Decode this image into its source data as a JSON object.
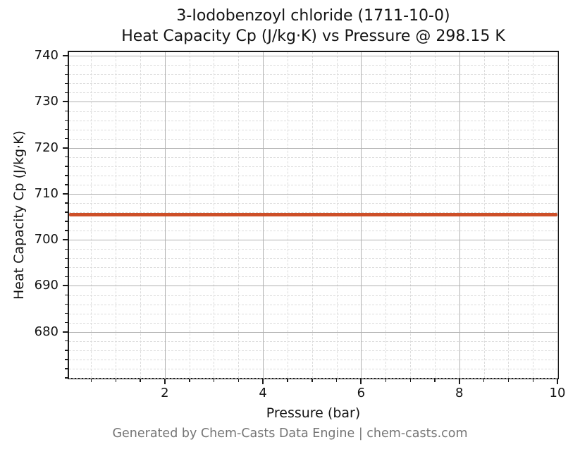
{
  "title": {
    "line1": "3-Iodobenzoyl chloride (1711-10-0)",
    "line2": "Heat Capacity Cp (J/kg·K) vs Pressure @ 298.15 K"
  },
  "axes": {
    "xlabel": "Pressure (bar)",
    "ylabel": "Heat Capacity Cp (J/kg·K)"
  },
  "footer": {
    "text": "Generated by Chem-Casts Data Engine | chem-casts.com"
  },
  "chart_data": {
    "type": "line",
    "title": "3-Iodobenzoyl chloride (1711-10-0) — Heat Capacity Cp (J/kg·K) vs Pressure @ 298.15 K",
    "xlabel": "Pressure (bar)",
    "ylabel": "Heat Capacity Cp (J/kg·K)",
    "series": [
      {
        "name": "Heat Capacity Cp",
        "x": [
          0.1,
          1,
          2,
          3,
          4,
          5,
          6,
          7,
          8,
          9,
          10
        ],
        "y": [
          705.5,
          705.5,
          705.5,
          705.5,
          705.5,
          705.5,
          705.5,
          705.5,
          705.5,
          705.5,
          705.5
        ]
      }
    ],
    "cp_constant_value": 705.5,
    "xlim": [
      0.05,
      10
    ],
    "ylim": [
      670,
      740.8
    ],
    "x_major_ticks": [
      2,
      4,
      6,
      8,
      10
    ],
    "x_minor_step": 0.5,
    "y_major_ticks": [
      680,
      690,
      700,
      710,
      720,
      730,
      740
    ],
    "y_minor_step": 2,
    "grid": {
      "major": true,
      "minor": true
    },
    "legend": "none",
    "colors": {
      "line": "#cd4f28",
      "grid_major": "#b0b0b0",
      "grid_minor": "#dcdcdc",
      "spine": "#1a1a1a",
      "text": "#141414",
      "footer_text": "#757575"
    }
  }
}
